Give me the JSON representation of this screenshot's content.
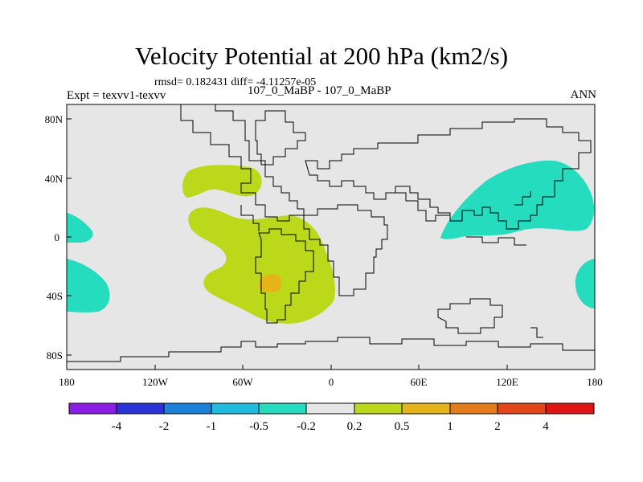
{
  "chart_data": {
    "type": "heatmap",
    "title": "Velocity Potential at 200 hPa (km2/s)",
    "stats_text": "rmsd= 0.182431 diff= -4.11257e-05",
    "left_label": "Expt = texvv1-texvv",
    "center_label": "107_0_MaBP - 107_0_MaBP",
    "right_label": "ANN",
    "x_ticks": [
      "180",
      "120W",
      "60W",
      "0",
      "60E",
      "120E",
      "180"
    ],
    "y_ticks": [
      "80N",
      "40N",
      "0",
      "40S",
      "80S"
    ],
    "xlim": [
      -180,
      180
    ],
    "ylim": [
      -90,
      90
    ],
    "colorbar": {
      "labels": [
        "-4",
        "-2",
        "-1",
        "-0.5",
        "-0.2",
        "0.2",
        "0.5",
        "1",
        "2",
        "4"
      ],
      "colors": [
        "#8a1ee6",
        "#2a32d8",
        "#1a82da",
        "#20bcdf",
        "#26dcbe",
        "#e6e6e6",
        "#bcd81a",
        "#e4b41a",
        "#e47c1a",
        "#e4461a",
        "#e01414"
      ]
    },
    "regions": [
      {
        "name": "tropical-atlantic-positive",
        "range": "0.2 to 0.5",
        "color": "#bcd81a"
      },
      {
        "name": "south-america-peak",
        "range": "0.5 to 1",
        "color": "#e4b41a"
      },
      {
        "name": "north-pacific-negative",
        "range": "-0.5 to -0.2",
        "color": "#26dcbe"
      },
      {
        "name": "east-pacific-negative",
        "range": "-0.5 to -0.2",
        "color": "#26dcbe"
      }
    ]
  }
}
